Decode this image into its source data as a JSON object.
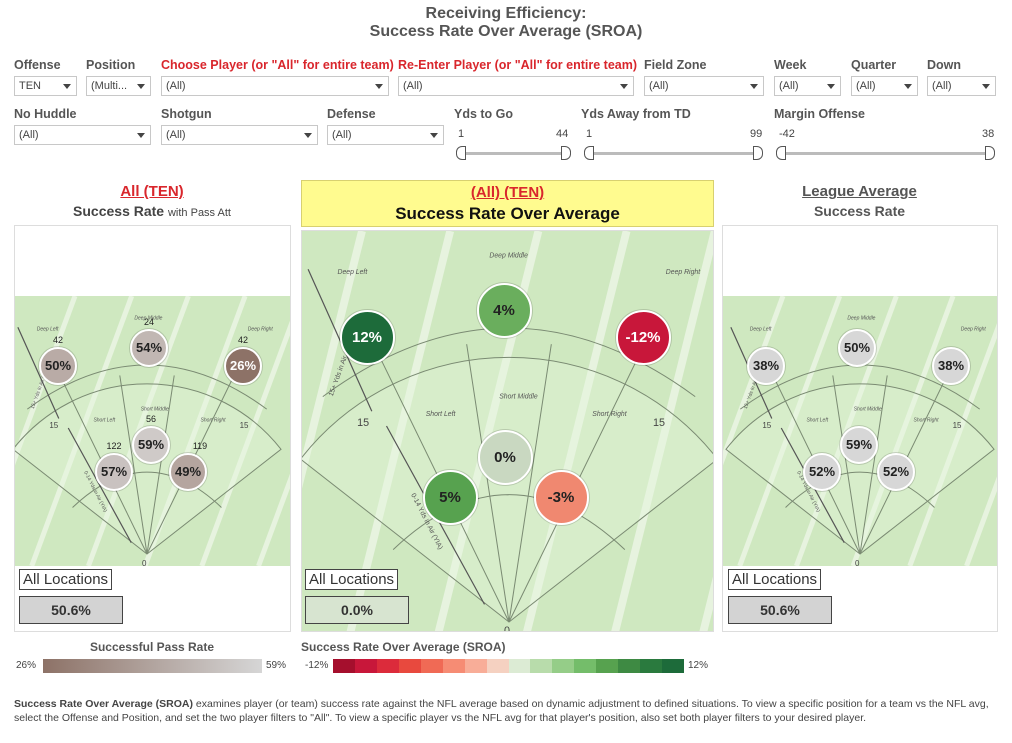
{
  "title": {
    "line1": "Receiving Efficiency:",
    "line2": "Success Rate Over Average (SROA)"
  },
  "filters": {
    "offense": {
      "label": "Offense",
      "value": "TEN"
    },
    "position": {
      "label": "Position",
      "value": "(Multi..."
    },
    "choose_player": {
      "label": "Choose Player (or \"All\" for entire team)",
      "value": "(All)"
    },
    "reenter_player": {
      "label": "Re-Enter Player (or \"All\" for entire team)",
      "value": "(All)"
    },
    "field_zone": {
      "label": "Field Zone",
      "value": "(All)"
    },
    "week": {
      "label": "Week",
      "value": "(All)"
    },
    "quarter": {
      "label": "Quarter",
      "value": "(All)"
    },
    "down": {
      "label": "Down",
      "value": "(All)"
    },
    "no_huddle": {
      "label": "No Huddle",
      "value": "(All)"
    },
    "shotgun": {
      "label": "Shotgun",
      "value": "(All)"
    },
    "defense": {
      "label": "Defense",
      "value": "(All)"
    }
  },
  "sliders": {
    "yds_to_go": {
      "label": "Yds to Go",
      "min": "1",
      "max": "44"
    },
    "yds_away": {
      "label": "Yds Away from TD",
      "min": "1",
      "max": "99"
    },
    "margin": {
      "label": "Margin Offense",
      "min": "-42",
      "max": "38"
    }
  },
  "left_panel": {
    "title": "All (TEN)",
    "subtitle": "Success Rate",
    "subtitle_small": "with Pass Att",
    "loc_label": "All Locations",
    "loc_value": "50.6%"
  },
  "center_panel": {
    "title": "(All) (TEN)",
    "subtitle": "Success Rate Over Average",
    "loc_label": "All Locations",
    "loc_value": "0.0%"
  },
  "right_panel": {
    "title": "League Average",
    "subtitle": "Success Rate",
    "loc_label": "All Locations",
    "loc_value": "50.6%"
  },
  "field_labels": {
    "deep_middle": "Deep Middle",
    "deep_left": "Deep Left",
    "deep_right": "Deep Right",
    "short_left": "Short Left",
    "short_middle": "Short Middle",
    "short_right": "Short Right",
    "yds_15plus": "15+ Yds in Air (YIA)",
    "yds_0_14": "0-14 Yds in Air (YIA)",
    "fifteen": "15",
    "zero": "0"
  },
  "left_bubbles": [
    {
      "zone": "deep-left",
      "value": "50%",
      "count": "42",
      "color": "#b9aba6"
    },
    {
      "zone": "deep-middle",
      "value": "54%",
      "count": "24",
      "color": "#c1b7b3"
    },
    {
      "zone": "deep-right",
      "value": "26%",
      "count": "42",
      "color": "#8d7267"
    },
    {
      "zone": "short-middle",
      "value": "59%",
      "count": "56",
      "color": "#cfcac8"
    },
    {
      "zone": "short-left",
      "value": "57%",
      "count": "122",
      "color": "#c9c2c0"
    },
    {
      "zone": "short-right",
      "value": "49%",
      "count": "119",
      "color": "#b5a59f"
    }
  ],
  "center_bubbles": [
    {
      "zone": "deep-left",
      "value": "12%",
      "color": "#1d6b3a"
    },
    {
      "zone": "deep-middle",
      "value": "4%",
      "color": "#6aae5d"
    },
    {
      "zone": "deep-right",
      "value": "-12%",
      "color": "#c8173a"
    },
    {
      "zone": "short-middle",
      "value": "0%",
      "color": "#c9d8c1"
    },
    {
      "zone": "short-left",
      "value": "5%",
      "color": "#57a24f"
    },
    {
      "zone": "short-right",
      "value": "-3%",
      "color": "#f08870"
    }
  ],
  "right_bubbles": [
    {
      "zone": "deep-left",
      "value": "38%",
      "color": "#d7d7d7"
    },
    {
      "zone": "deep-middle",
      "value": "50%",
      "color": "#d7d7d7"
    },
    {
      "zone": "deep-right",
      "value": "38%",
      "color": "#d7d7d7"
    },
    {
      "zone": "short-middle",
      "value": "59%",
      "color": "#d7d7d7"
    },
    {
      "zone": "short-left",
      "value": "52%",
      "color": "#d7d7d7"
    },
    {
      "zone": "short-right",
      "value": "52%",
      "color": "#d7d7d7"
    }
  ],
  "legend_left": {
    "title": "Successful Pass Rate",
    "min": "26%",
    "max": "59%",
    "color_min": "#8d7267",
    "color_max": "#d6d6d6"
  },
  "legend_right": {
    "title": "Success Rate Over Average (SROA)",
    "min": "-12%",
    "max": "12%",
    "colors": [
      "#a50f2d",
      "#c8173a",
      "#dc2b3b",
      "#e8493e",
      "#f06a55",
      "#f68c74",
      "#f8ad98",
      "#f5d1c1",
      "#dcebd4",
      "#b8dcab",
      "#95cd88",
      "#74bd6a",
      "#57a24f",
      "#3e8a43",
      "#2a7a3e",
      "#1d6b3a"
    ]
  },
  "description": {
    "bold": "Success Rate Over Average (SROA)",
    "text": " examines player (or team) success rate against the NFL average based on dynamic adjustment to defined situations. To view a specific position for a team vs the NFL avg, select the Offense and Position, and set the two player filters to \"All\". To view a specific player vs the NFL avg for that player's position, also set both player filters to your desired player."
  }
}
